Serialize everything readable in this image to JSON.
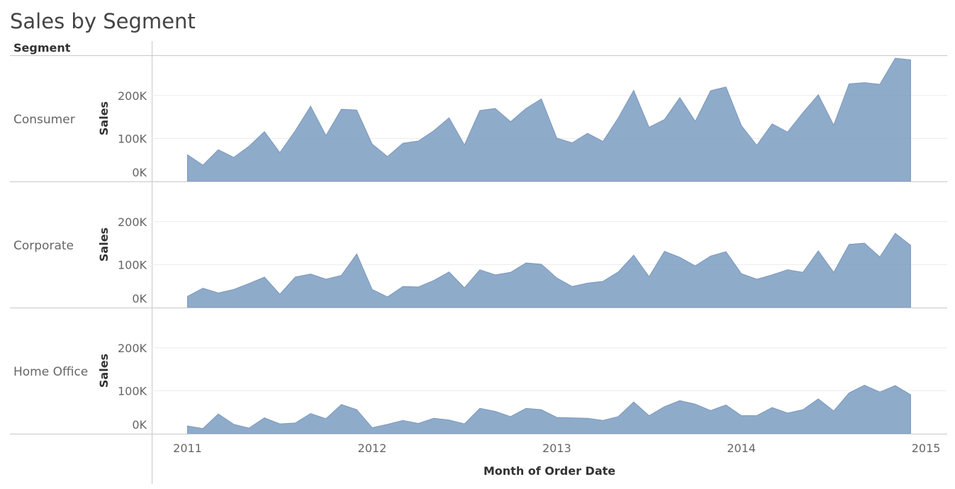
{
  "chart_data": {
    "type": "area",
    "title": "Sales by Segment",
    "row_header": "Segment",
    "xlabel": "Month of Order Date",
    "ylabel": "Sales",
    "x_ticks": [
      "2011",
      "2012",
      "2013",
      "2014",
      "2015"
    ],
    "y_ticks": [
      {
        "value": 0,
        "label": "0K"
      },
      {
        "value": 100000,
        "label": "100K"
      },
      {
        "value": 200000,
        "label": "200K"
      }
    ],
    "ylim": [
      0,
      280000
    ],
    "fill_color": "#7396bd",
    "line_color": "#7a98bb",
    "start_month": "2011-01",
    "series": [
      {
        "name": "Consumer",
        "values": [
          62000,
          38000,
          74000,
          56000,
          82000,
          116000,
          67000,
          118000,
          175000,
          107000,
          168000,
          166000,
          87000,
          58000,
          89000,
          94000,
          118000,
          148000,
          85000,
          165000,
          170000,
          139000,
          170000,
          192000,
          101000,
          90000,
          112000,
          93000,
          148000,
          212000,
          126000,
          144000,
          195000,
          140000,
          211000,
          220000,
          130000,
          84000,
          134000,
          115000,
          160000,
          202000,
          131000,
          227000,
          230000,
          226000,
          287000,
          283000
        ]
      },
      {
        "name": "Corporate",
        "values": [
          26000,
          45000,
          34000,
          42000,
          56000,
          71000,
          31000,
          71000,
          78000,
          66000,
          75000,
          125000,
          42000,
          25000,
          49000,
          48000,
          63000,
          83000,
          46000,
          88000,
          76000,
          82000,
          104000,
          101000,
          69000,
          49000,
          57000,
          61000,
          83000,
          122000,
          72000,
          131000,
          117000,
          97000,
          120000,
          130000,
          79000,
          66000,
          76000,
          88000,
          82000,
          132000,
          82000,
          147000,
          150000,
          118000,
          173000,
          145000
        ]
      },
      {
        "name": "Home Office",
        "values": [
          18000,
          12000,
          46000,
          22000,
          13000,
          37000,
          23000,
          25000,
          47000,
          35000,
          68000,
          56000,
          14000,
          22000,
          31000,
          24000,
          36000,
          32000,
          23000,
          59000,
          52000,
          40000,
          59000,
          56000,
          38000,
          37000,
          36000,
          31000,
          40000,
          74000,
          42000,
          63000,
          77000,
          69000,
          54000,
          67000,
          42000,
          42000,
          61000,
          48000,
          56000,
          81000,
          53000,
          95000,
          113000,
          97000,
          112000,
          91000
        ]
      }
    ]
  }
}
